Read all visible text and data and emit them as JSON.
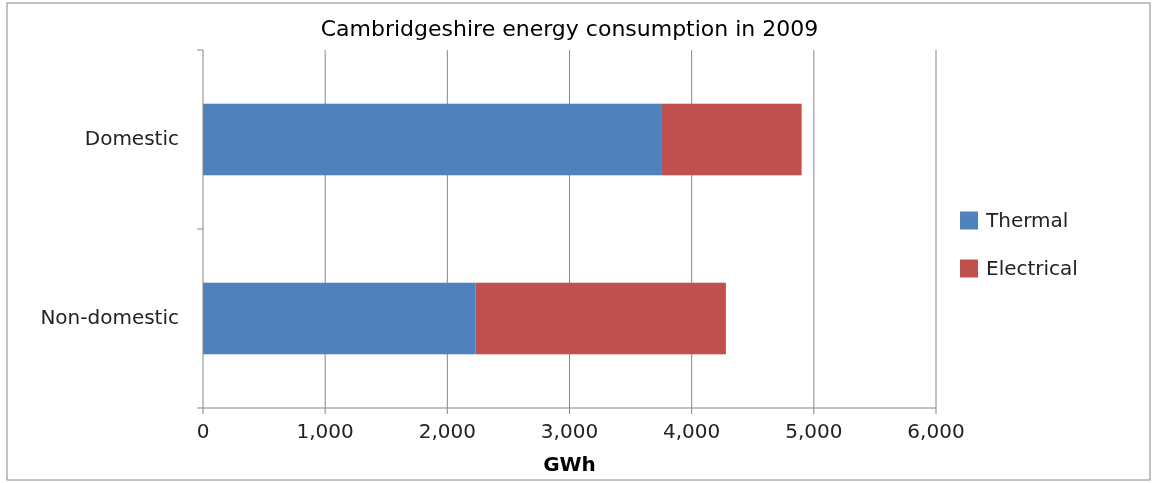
{
  "chart_data": {
    "type": "bar",
    "orientation": "horizontal",
    "stacked": true,
    "title": "Cambridgeshire energy consumption in 2009",
    "xlabel": "GWh",
    "categories": [
      "Domestic",
      "Non-domestic"
    ],
    "series": [
      {
        "name": "Thermal",
        "color": "#4f81bd",
        "values": [
          3750,
          2230
        ]
      },
      {
        "name": "Electrical",
        "color": "#c0504d",
        "values": [
          1150,
          2050
        ]
      }
    ],
    "xlim": [
      0,
      6000
    ],
    "xticks": [
      {
        "value": 0,
        "label": "0"
      },
      {
        "value": 1000,
        "label": "1,000"
      },
      {
        "value": 2000,
        "label": "2,000"
      },
      {
        "value": 3000,
        "label": "3,000"
      },
      {
        "value": 4000,
        "label": "4,000"
      },
      {
        "value": 5000,
        "label": "5,000"
      },
      {
        "value": 6000,
        "label": "6,000"
      }
    ],
    "grid": "x",
    "legend": "right"
  }
}
